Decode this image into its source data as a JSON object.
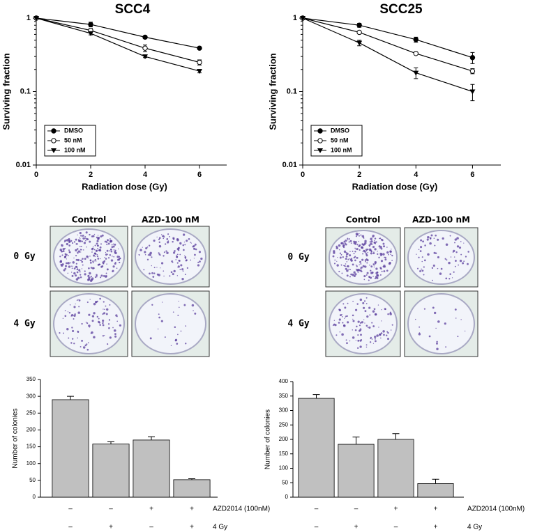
{
  "chart_data": [
    {
      "type": "line",
      "title": "SCC4",
      "x_label": "Radiation dose (Gy)",
      "y_label": "Surviving fraction",
      "x": [
        0,
        2,
        4,
        6
      ],
      "xlim": [
        0,
        7
      ],
      "xticks": [
        0,
        2,
        4,
        6
      ],
      "ylim": [
        0.01,
        1
      ],
      "yticks": [
        0.01,
        0.1,
        1
      ],
      "log_scale": true,
      "legend": "lower left",
      "series": [
        {
          "name": "DMSO",
          "color": "#000000",
          "marker": "circle",
          "values": [
            1,
            0.82,
            0.55,
            0.39
          ],
          "errors": [
            0,
            0.06,
            0.02,
            0.01
          ]
        },
        {
          "name": "50 nM",
          "color": "#000000",
          "marker": "open-circle",
          "values": [
            1,
            0.68,
            0.39,
            0.25
          ],
          "errors": [
            0,
            0.04,
            0.04,
            0.02
          ]
        },
        {
          "name": "100 nM",
          "color": "#000000",
          "marker": "triangle-down",
          "values": [
            1,
            0.62,
            0.3,
            0.19
          ],
          "errors": [
            0,
            0.03,
            0.01,
            0.01
          ]
        }
      ]
    },
    {
      "type": "line",
      "title": "SCC25",
      "x_label": "Radiation dose (Gy)",
      "y_label": "Surviving fraction",
      "x": [
        0,
        2,
        4,
        6
      ],
      "xlim": [
        0,
        7
      ],
      "xticks": [
        0,
        2,
        4,
        6
      ],
      "ylim": [
        0.01,
        1
      ],
      "yticks": [
        0.01,
        0.1,
        1
      ],
      "log_scale": true,
      "legend": "lower left",
      "series": [
        {
          "name": "DMSO",
          "color": "#000000",
          "marker": "circle",
          "values": [
            1,
            0.8,
            0.51,
            0.29
          ],
          "errors": [
            0,
            0.05,
            0.04,
            0.05
          ]
        },
        {
          "name": "50 nM",
          "color": "#000000",
          "marker": "open-circle",
          "values": [
            1,
            0.64,
            0.33,
            0.19
          ],
          "errors": [
            0,
            0.02,
            0.01,
            0.015
          ]
        },
        {
          "name": "100 nM",
          "color": "#000000",
          "marker": "triangle-down",
          "values": [
            1,
            0.46,
            0.18,
            0.1
          ],
          "errors": [
            0,
            0.04,
            0.03,
            0.025
          ]
        }
      ]
    },
    {
      "type": "bar",
      "y_label": "Number of colonies",
      "color": "#c0c0c0",
      "values": [
        290,
        158,
        170,
        52
      ],
      "errors": [
        10,
        7,
        10,
        3
      ],
      "ylim": [
        0,
        350
      ],
      "yticks": [
        0,
        50,
        100,
        150,
        200,
        250,
        300,
        350
      ],
      "conditions": [
        {
          "label": "AZD2014 (100nM)",
          "values": [
            "–",
            "–",
            "+",
            "+"
          ]
        },
        {
          "label": "4 Gy",
          "values": [
            "–",
            "+",
            "–",
            "+"
          ]
        }
      ]
    },
    {
      "type": "bar",
      "y_label": "Number of colonies",
      "color": "#c0c0c0",
      "values": [
        342,
        183,
        200,
        47
      ],
      "errors": [
        13,
        25,
        20,
        15
      ],
      "ylim": [
        0,
        400
      ],
      "yticks": [
        0,
        50,
        100,
        150,
        200,
        250,
        300,
        350,
        400
      ],
      "conditions": [
        {
          "label": "AZD2014 (100nM)",
          "values": [
            "–",
            "–",
            "+",
            "+"
          ]
        },
        {
          "label": "4 Gy",
          "values": [
            "–",
            "+",
            "–",
            "+"
          ]
        }
      ]
    }
  ],
  "plates": [
    {
      "columns": [
        "Control",
        "AZD-100 nM"
      ],
      "rows": [
        "0 Gy",
        "4 Gy"
      ]
    },
    {
      "columns": [
        "Control",
        "AZD-100 nM"
      ],
      "rows": [
        "0 Gy",
        "4 Gy"
      ]
    }
  ]
}
